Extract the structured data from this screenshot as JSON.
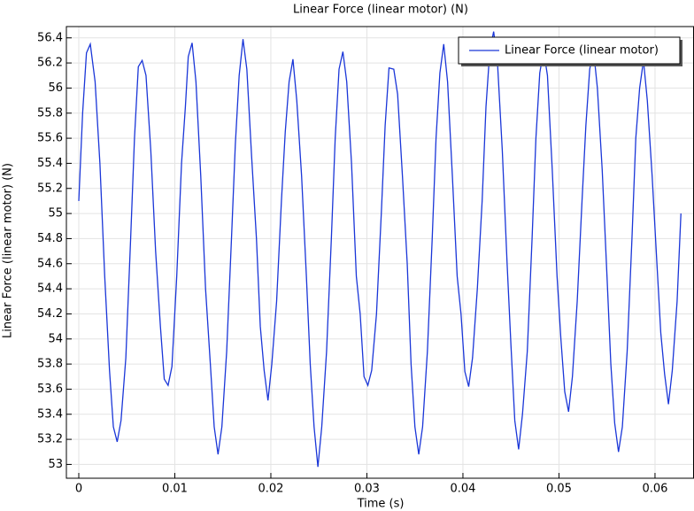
{
  "chart_data": {
    "type": "line",
    "title": "Linear Force (linear motor) (N)",
    "x_label": "Time (s)",
    "y_label": "Linear Force (linear motor) (N)",
    "x": [
      0,
      0.0004,
      0.0008,
      0.0012,
      0.0017,
      0.0022,
      0.0027,
      0.0032,
      0.0036,
      0.004,
      0.0044,
      0.0049,
      0.0054,
      0.0058,
      0.0062,
      0.0066,
      0.007,
      0.0075,
      0.008,
      0.0085,
      0.0089,
      0.0093,
      0.0097,
      0.0102,
      0.0107,
      0.0111,
      0.0114,
      0.0118,
      0.0122,
      0.0127,
      0.0132,
      0.0137,
      0.0141,
      0.0145,
      0.0149,
      0.0154,
      0.0159,
      0.0163,
      0.0167,
      0.0171,
      0.0175,
      0.018,
      0.0185,
      0.0189,
      0.0193,
      0.0197,
      0.0201,
      0.0206,
      0.0211,
      0.0215,
      0.0219,
      0.0223,
      0.0227,
      0.0232,
      0.0237,
      0.0241,
      0.0245,
      0.0249,
      0.0253,
      0.0258,
      0.0263,
      0.0267,
      0.0271,
      0.0275,
      0.0279,
      0.0284,
      0.0289,
      0.0293,
      0.0297,
      0.0301,
      0.0305,
      0.031,
      0.0315,
      0.0319,
      0.0323,
      0.0328,
      0.0332,
      0.0337,
      0.0342,
      0.0346,
      0.035,
      0.0354,
      0.0358,
      0.0363,
      0.0368,
      0.0372,
      0.0376,
      0.038,
      0.0384,
      0.0389,
      0.0394,
      0.0398,
      0.0402,
      0.0406,
      0.041,
      0.0415,
      0.042,
      0.0424,
      0.0428,
      0.0432,
      0.0436,
      0.0441,
      0.0446,
      0.045,
      0.0454,
      0.0458,
      0.0462,
      0.0467,
      0.0472,
      0.0476,
      0.048,
      0.0484,
      0.0488,
      0.0493,
      0.0498,
      0.0502,
      0.0506,
      0.051,
      0.0514,
      0.0519,
      0.0524,
      0.0528,
      0.0532,
      0.0536,
      0.054,
      0.0545,
      0.055,
      0.0554,
      0.0558,
      0.0562,
      0.0566,
      0.0571,
      0.0576,
      0.058,
      0.0584,
      0.0588,
      0.0592,
      0.0597,
      0.0602,
      0.0606,
      0.061,
      0.0614,
      0.0618,
      0.0623,
      0.0627
    ],
    "series": [
      {
        "name": "Linear Force (linear motor)",
        "color": "#1a36d8",
        "values": [
          55.1,
          55.8,
          56.28,
          56.35,
          56.05,
          55.4,
          54.5,
          53.75,
          53.3,
          53.18,
          53.35,
          53.85,
          54.8,
          55.6,
          56.17,
          56.22,
          56.1,
          55.5,
          54.7,
          54.1,
          53.68,
          53.63,
          53.78,
          54.5,
          55.4,
          55.85,
          56.25,
          56.36,
          56.05,
          55.3,
          54.4,
          53.8,
          53.3,
          53.08,
          53.3,
          53.9,
          54.8,
          55.55,
          56.1,
          56.39,
          56.15,
          55.45,
          54.8,
          54.1,
          53.75,
          53.51,
          53.8,
          54.3,
          55.1,
          55.65,
          56.05,
          56.23,
          55.9,
          55.3,
          54.5,
          53.8,
          53.3,
          52.98,
          53.3,
          53.9,
          54.8,
          55.6,
          56.15,
          56.29,
          56.05,
          55.4,
          54.5,
          54.2,
          53.7,
          53.63,
          53.75,
          54.2,
          55.0,
          55.7,
          56.16,
          56.15,
          55.95,
          55.3,
          54.6,
          53.8,
          53.3,
          53.08,
          53.3,
          53.9,
          54.8,
          55.6,
          56.12,
          56.35,
          56.05,
          55.3,
          54.5,
          54.2,
          53.74,
          53.62,
          53.85,
          54.4,
          55.1,
          55.85,
          56.3,
          56.45,
          56.2,
          55.5,
          54.6,
          53.95,
          53.35,
          53.12,
          53.4,
          53.9,
          54.8,
          55.6,
          56.12,
          56.3,
          56.1,
          55.35,
          54.5,
          54.0,
          53.58,
          53.42,
          53.7,
          54.3,
          55.1,
          55.7,
          56.15,
          56.3,
          56.0,
          55.35,
          54.5,
          53.8,
          53.33,
          53.1,
          53.3,
          53.9,
          54.8,
          55.6,
          56.0,
          56.22,
          55.9,
          55.3,
          54.6,
          54.05,
          53.72,
          53.48,
          53.75,
          54.3,
          55.0
        ]
      }
    ],
    "xlim": [
      -0.00129,
      0.06406
    ],
    "ylim": [
      52.89,
      56.49
    ],
    "xticks": [
      0,
      0.01,
      0.02,
      0.03,
      0.04,
      0.05,
      0.06
    ],
    "yticks": [
      53,
      53.2,
      53.4,
      53.6,
      53.8,
      54,
      54.2,
      54.4,
      54.6,
      54.8,
      55,
      55.2,
      55.4,
      55.6,
      55.8,
      56,
      56.2,
      56.4
    ],
    "grid": true,
    "legend": "upper right"
  }
}
